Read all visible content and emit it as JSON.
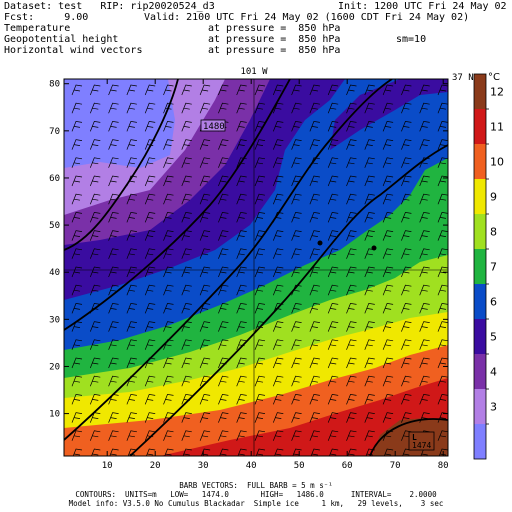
{
  "header": {
    "dataset": "Dataset: test   RIP: rip20020524_d3",
    "init": "Init: 1200 UTC Fri 24 May 02",
    "fcst": "Fcst:     9.00",
    "valid": "Valid: 2100 UTC Fri 24 May 02 (1600 CDT Fri 24 May 02)",
    "fields": [
      {
        "name": "Temperature",
        "level": "at pressure =  850 hPa"
      },
      {
        "name": "Geopotential height",
        "level": "at pressure =  850 hPa"
      },
      {
        "name": "Horizontal wind vectors",
        "level": "at pressure =  850 hPa"
      }
    ],
    "sm": "sm=10"
  },
  "map": {
    "top_label": "101 W",
    "right_label": "37 N",
    "x_ticks": [
      10,
      20,
      30,
      40,
      50,
      60,
      70,
      80
    ],
    "y_ticks": [
      10,
      20,
      30,
      40,
      50,
      60,
      70,
      80
    ],
    "xlim": [
      1,
      81
    ],
    "ylim": [
      1,
      81
    ],
    "contour_labels": [
      "1480",
      "1474"
    ],
    "low_marker": "L",
    "colors": {
      "3": "#7f7fff",
      "4": "#b27fe5",
      "5": "#7a30a8",
      "6": "#3a0ca0",
      "7": "#0a4cc8",
      "8": "#20b440",
      "9": "#a0e020",
      "10": "#f0e800",
      "11": "#f06020",
      "12": "#d01818",
      "13": "#8a3a1a"
    }
  },
  "colorbar": {
    "unit": "°C",
    "labels": [
      "3",
      "4",
      "5",
      "6",
      "7",
      "8",
      "9",
      "10",
      "11",
      "12"
    ]
  },
  "footer": {
    "line1": "BARB VECTORS:  FULL BARB = 5 m s⁻¹",
    "line2": "CONTOURS:  UNITS=m   LOW=   1474.0       HIGH=   1486.0      INTERVAL=    2.0000",
    "line3": "Model info: V3.5.0 No Cumulus Blackadar  Simple ice     1 km,   29 levels,    3 sec"
  }
}
